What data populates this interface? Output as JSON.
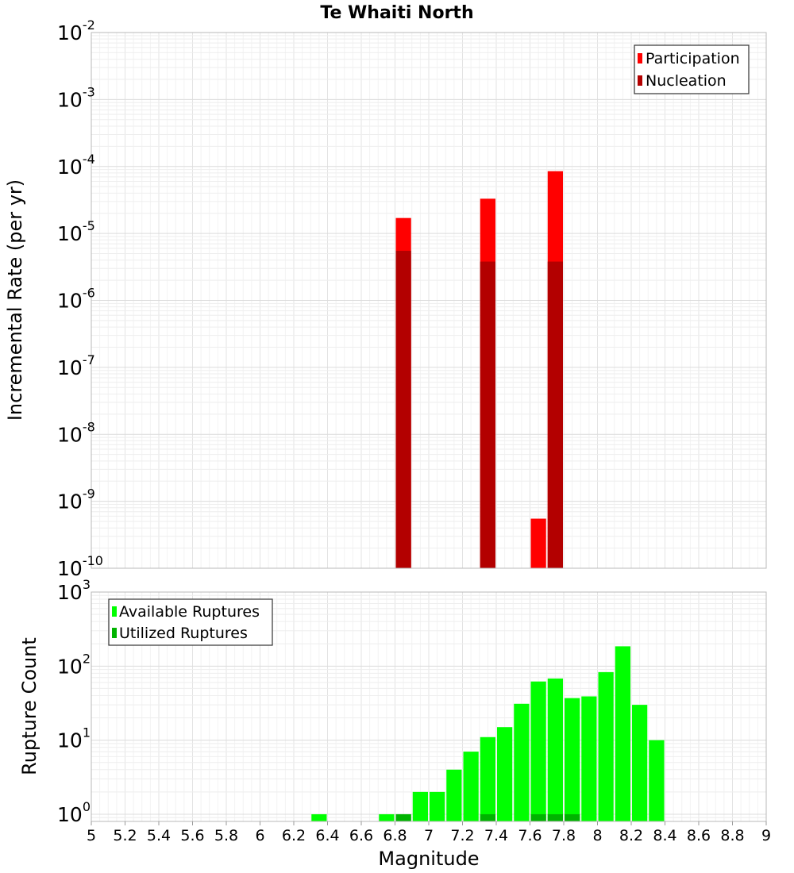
{
  "chart_data": [
    {
      "type": "bar",
      "title": "Te Whaiti North",
      "ylabel": "Incremental Rate (per yr)",
      "y_scale": "log",
      "ylim": [
        1e-10,
        0.01
      ],
      "y_ticks": [
        {
          "base": "10",
          "exp": "-10"
        },
        {
          "base": "10",
          "exp": "-9"
        },
        {
          "base": "10",
          "exp": "-8"
        },
        {
          "base": "10",
          "exp": "-7"
        },
        {
          "base": "10",
          "exp": "-6"
        },
        {
          "base": "10",
          "exp": "-5"
        },
        {
          "base": "10",
          "exp": "-4"
        },
        {
          "base": "10",
          "exp": "-3"
        },
        {
          "base": "10",
          "exp": "-2"
        }
      ],
      "grid": true,
      "legend_placement": "top-right",
      "series": [
        {
          "name": "Participation",
          "color": "#ff0000",
          "x": [
            6.85,
            7.35,
            7.65,
            7.75
          ],
          "values": [
            1.7e-05,
            3.3e-05,
            5.5e-10,
            8.5e-05
          ]
        },
        {
          "name": "Nucleation",
          "color": "#b30000",
          "x": [
            6.85,
            7.35,
            7.75
          ],
          "values": [
            5.5e-06,
            3.8e-06,
            3.8e-06
          ]
        }
      ]
    },
    {
      "type": "bar",
      "xlabel": "Magnitude",
      "ylabel": "Rupture Count",
      "y_scale": "log",
      "xlim": [
        5,
        9
      ],
      "ylim": [
        0.8,
        1000
      ],
      "x_ticks": [
        "5",
        "5.2",
        "5.4",
        "5.6",
        "5.8",
        "6",
        "6.2",
        "6.4",
        "6.6",
        "6.8",
        "7",
        "7.2",
        "7.4",
        "7.6",
        "7.8",
        "8",
        "8.2",
        "8.4",
        "8.6",
        "8.8",
        "9"
      ],
      "y_ticks": [
        {
          "base": "10",
          "exp": "0"
        },
        {
          "base": "10",
          "exp": "1"
        },
        {
          "base": "10",
          "exp": "2"
        },
        {
          "base": "10",
          "exp": "3"
        }
      ],
      "grid": true,
      "legend_placement": "top-left",
      "series": [
        {
          "name": "Available Ruptures",
          "color": "#00ff00",
          "x": [
            6.35,
            6.75,
            6.85,
            6.95,
            7.05,
            7.15,
            7.25,
            7.35,
            7.45,
            7.55,
            7.65,
            7.75,
            7.85,
            7.95,
            8.05,
            8.15,
            8.25,
            8.35
          ],
          "values": [
            1,
            1,
            1,
            2,
            2,
            4,
            7,
            11,
            15,
            31,
            62,
            68,
            37,
            39,
            83,
            185,
            30,
            10
          ]
        },
        {
          "name": "Utilized Ruptures",
          "color": "#00b300",
          "x": [
            6.85,
            7.35,
            7.65,
            7.75,
            7.85
          ],
          "values": [
            1,
            1,
            1,
            1,
            1
          ]
        }
      ]
    }
  ]
}
